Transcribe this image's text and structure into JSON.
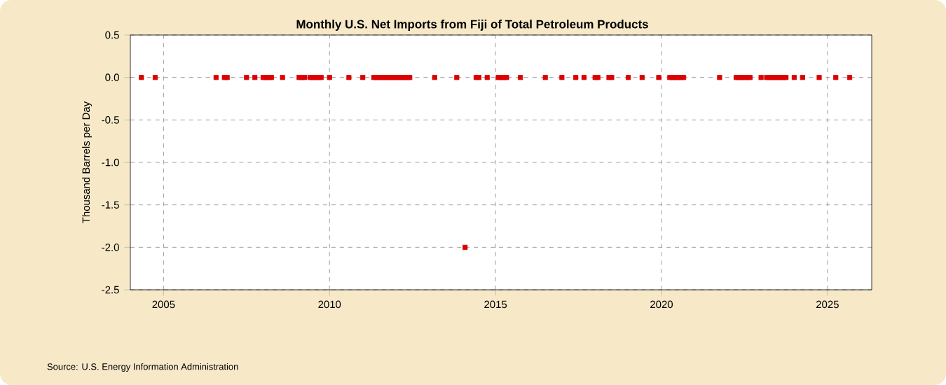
{
  "chart_data": {
    "type": "scatter",
    "title": "Monthly U.S. Net Imports from Fiji of Total Petroleum Products",
    "ylabel": "Thousand Barrels per Day",
    "annotations": [
      "Source: U.S. Energy Information Administration"
    ],
    "series": [
      {
        "color": "#dd0000",
        "x": [
          "2004-05",
          "2004-10",
          "2006-08",
          "2006-11",
          "2006-12",
          "2007-07",
          "2007-10",
          "2008-01",
          "2008-02",
          "2008-03",
          "2008-04",
          "2008-08",
          "2009-02",
          "2009-03",
          "2009-04",
          "2009-06",
          "2009-07",
          "2009-08",
          "2009-09",
          "2009-10",
          "2010-01",
          "2010-08",
          "2011-01",
          "2011-05",
          "2011-06",
          "2011-07",
          "2011-08",
          "2011-09",
          "2011-10",
          "2011-11",
          "2011-12",
          "2012-01",
          "2012-02",
          "2012-03",
          "2012-04",
          "2012-05",
          "2012-06",
          "2013-03",
          "2013-11",
          "2014-02",
          "2014-06",
          "2014-07",
          "2014-10",
          "2015-02",
          "2015-03",
          "2015-04",
          "2015-05",
          "2015-10",
          "2016-07",
          "2017-01",
          "2017-06",
          "2017-09",
          "2018-01",
          "2018-02",
          "2018-06",
          "2018-07",
          "2019-01",
          "2019-06",
          "2019-12",
          "2020-04",
          "2020-05",
          "2020-06",
          "2020-07",
          "2020-08",
          "2020-09",
          "2021-10",
          "2022-04",
          "2022-05",
          "2022-06",
          "2022-07",
          "2022-08",
          "2022-09",
          "2023-01",
          "2023-03",
          "2023-04",
          "2023-05",
          "2023-06",
          "2023-07",
          "2023-08",
          "2023-09",
          "2023-10",
          "2024-01",
          "2024-04",
          "2024-10",
          "2025-04",
          "2025-09"
        ],
        "values": [
          0,
          0,
          0,
          0,
          0,
          0,
          0,
          0,
          0,
          0,
          0,
          0,
          0,
          0,
          0,
          0,
          0,
          0,
          0,
          0,
          0,
          0,
          0,
          0,
          0,
          0,
          0,
          0,
          0,
          0,
          0,
          0,
          0,
          0,
          0,
          0,
          0,
          0,
          0,
          -2,
          0,
          0,
          0,
          0,
          0,
          0,
          0,
          0,
          0,
          0,
          0,
          0,
          0,
          0,
          0,
          0,
          0,
          0,
          0,
          0,
          0,
          0,
          0,
          0,
          0,
          0,
          0,
          0,
          0,
          0,
          0,
          0,
          0,
          0,
          0,
          0,
          0,
          0,
          0,
          0,
          0,
          0,
          0,
          0,
          0,
          0
        ]
      }
    ],
    "marker": "square",
    "grid": true,
    "xlim": [
      "2004-01",
      "2026-05"
    ],
    "xticks": [
      "2005",
      "2010",
      "2015",
      "2020",
      "2025"
    ],
    "ylim": [
      -2.5,
      0.5
    ],
    "yticks": [
      {
        "value": 0.5,
        "label": "0.5"
      },
      {
        "value": 0,
        "label": "0.0"
      },
      {
        "value": -0.5,
        "label": "-0.5"
      },
      {
        "value": -1,
        "label": "-1.0"
      },
      {
        "value": -1.5,
        "label": "-1.5"
      },
      {
        "value": -2,
        "label": "-2.0"
      },
      {
        "value": -2.5,
        "label": "-2.5"
      }
    ]
  }
}
